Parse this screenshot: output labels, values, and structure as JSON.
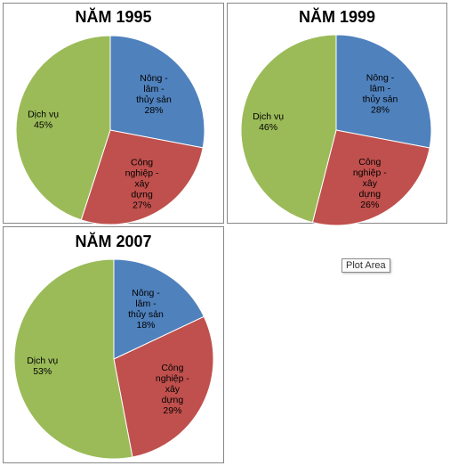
{
  "chart_data": [
    {
      "type": "pie",
      "title": "NĂM 1995",
      "categories": [
        "Nông - lâm - thủy sản",
        "Công nghiệp - xây dựng",
        "Dịch vụ"
      ],
      "values": [
        28,
        27,
        45
      ],
      "labels": [
        [
          "Nông -",
          "lâm -",
          "thủy sản",
          "28%"
        ],
        [
          "Công",
          "nghiệp -",
          "xây",
          "dựng",
          "27%"
        ],
        [
          "Dịch vụ",
          "45%"
        ]
      ],
      "colors": [
        "#4f81bd",
        "#c0504d",
        "#9bbb59"
      ]
    },
    {
      "type": "pie",
      "title": "NĂM 1999",
      "categories": [
        "Nông - lâm - thủy sản",
        "Công nghiệp - xây dựng",
        "Dịch vụ"
      ],
      "values": [
        28,
        26,
        46
      ],
      "labels": [
        [
          "Nông -",
          "lâm -",
          "thủy sản",
          "28%"
        ],
        [
          "Công",
          "nghiệp -",
          "xây",
          "dựng",
          "26%"
        ],
        [
          "Dịch vụ",
          "46%"
        ]
      ],
      "colors": [
        "#4f81bd",
        "#c0504d",
        "#9bbb59"
      ]
    },
    {
      "type": "pie",
      "title": "NĂM 2007",
      "categories": [
        "Nông - lâm - thủy sản",
        "Công nghiệp - xây dựng",
        "Dịch vụ"
      ],
      "values": [
        18,
        29,
        53
      ],
      "labels": [
        [
          "Nông -",
          "lâm -",
          "thủy sản",
          "18%"
        ],
        [
          "Công",
          "nghiệp -",
          "xây",
          "dựng",
          "29%"
        ],
        [
          "Dịch vụ",
          "53%"
        ]
      ],
      "colors": [
        "#4f81bd",
        "#c0504d",
        "#9bbb59"
      ]
    }
  ],
  "tooltip": {
    "text": "Plot Area"
  }
}
